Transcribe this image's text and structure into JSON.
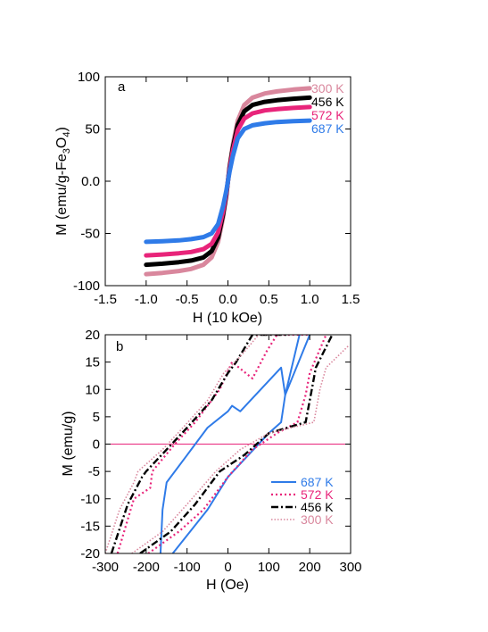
{
  "chart_data": [
    {
      "type": "line",
      "panel_label": "a",
      "xlabel": "H (10 kOe)",
      "ylabel_parts": [
        "M (emu/g-Fe",
        "3",
        "O",
        "4",
        ")"
      ],
      "xlim": [
        -1.5,
        1.5
      ],
      "ylim": [
        -100,
        100
      ],
      "xticks": [
        -1.5,
        -1.0,
        -0.5,
        0.0,
        0.5,
        1.0,
        1.5
      ],
      "xtick_labels": [
        "-1.5",
        "-1.0",
        "-0.5",
        "0.0",
        "0.5",
        "1.0",
        "1.5"
      ],
      "yticks": [
        -100,
        -50,
        0,
        50,
        100
      ],
      "ytick_labels": [
        "-100",
        "-50",
        "0.0",
        "50",
        "100"
      ],
      "legend": "top-right",
      "series": [
        {
          "name": "300 K",
          "color": "#d9879d",
          "ms": 89,
          "x": [
            -1.0,
            -0.8,
            -0.6,
            -0.45,
            -0.3,
            -0.2,
            -0.12,
            -0.06,
            -0.02,
            0.0,
            0.02,
            0.06,
            0.12,
            0.2,
            0.3,
            0.45,
            0.6,
            0.8,
            1.0
          ],
          "y": [
            -89,
            -87.8,
            -86,
            -84,
            -80,
            -73,
            -58,
            -35,
            -14,
            0,
            14,
            35,
            58,
            73,
            80,
            84,
            86,
            87.8,
            89
          ]
        },
        {
          "name": "456 K",
          "color": "#000000",
          "ms": 80,
          "x": [
            -1.0,
            -0.8,
            -0.6,
            -0.45,
            -0.3,
            -0.2,
            -0.12,
            -0.06,
            -0.02,
            0.0,
            0.02,
            0.06,
            0.12,
            0.2,
            0.3,
            0.45,
            0.6,
            0.8,
            1.0
          ],
          "y": [
            -80,
            -79,
            -77.5,
            -76,
            -73,
            -67,
            -54,
            -32,
            -13,
            0,
            13,
            32,
            54,
            67,
            73,
            76,
            77.5,
            79,
            80
          ]
        },
        {
          "name": "572 K",
          "color": "#e8247a",
          "ms": 71,
          "x": [
            -1.0,
            -0.8,
            -0.6,
            -0.45,
            -0.3,
            -0.2,
            -0.12,
            -0.06,
            -0.02,
            0.0,
            0.02,
            0.06,
            0.12,
            0.2,
            0.3,
            0.45,
            0.6,
            0.8,
            1.0
          ],
          "y": [
            -71,
            -70.2,
            -69,
            -67.8,
            -65,
            -60,
            -49,
            -29,
            -11,
            0,
            11,
            29,
            49,
            60,
            65,
            67.8,
            69,
            70.2,
            71
          ]
        },
        {
          "name": "687 K",
          "color": "#2f7be8",
          "ms": 58,
          "x": [
            -1.0,
            -0.8,
            -0.6,
            -0.45,
            -0.3,
            -0.2,
            -0.12,
            -0.06,
            -0.02,
            0.0,
            0.02,
            0.06,
            0.12,
            0.2,
            0.3,
            0.45,
            0.6,
            0.8,
            1.0
          ],
          "y": [
            -58,
            -57.5,
            -56.7,
            -55.5,
            -53.5,
            -50,
            -41,
            -24,
            -9,
            0,
            9,
            24,
            41,
            50,
            53.5,
            55.5,
            56.7,
            57.5,
            58
          ]
        }
      ]
    },
    {
      "type": "line",
      "panel_label": "b",
      "xlabel": "H (Oe)",
      "ylabel": "M (emu/g)",
      "xlim": [
        -300,
        300
      ],
      "ylim": [
        -20,
        20
      ],
      "xticks": [
        -300,
        -200,
        -100,
        0,
        100,
        200,
        300
      ],
      "xtick_labels": [
        "-300",
        "-200",
        "-100",
        "0",
        "100",
        "200",
        "300"
      ],
      "yticks": [
        -20,
        -15,
        -10,
        -5,
        0,
        5,
        10,
        15,
        20
      ],
      "ytick_labels": [
        "-20",
        "-15",
        "-10",
        "-5",
        "0",
        "5",
        "10",
        "15",
        "20"
      ],
      "zero_line_color": "#e8247a",
      "legend": "bottom-right",
      "series": [
        {
          "name": "687 K",
          "color": "#2f7be8",
          "dash": "solid",
          "x": [
            -300,
            -220,
            -160,
            -150,
            -100,
            -50,
            0,
            30,
            10,
            10,
            130,
            140,
            200,
            200,
            130,
            40,
            0,
            -50,
            -135,
            -165,
            -200,
            -300
          ],
          "y": [
            -20,
            -16,
            -12,
            -11,
            -6,
            -1,
            3,
            6,
            6,
            7,
            14,
            20,
            20,
            20,
            4,
            2,
            -6,
            -12,
            -20,
            -20,
            -20,
            -20
          ],
          "upper": {
            "x": [
              -165,
              -160,
              -150,
              -100,
              -50,
              0,
              10,
              30,
              130,
              140,
              175
            ],
            "y": [
              -20,
              -12,
              -7,
              -2,
              3,
              6,
              7,
              6,
              14,
              9,
              20
            ]
          },
          "lower": {
            "x": [
              -135,
              -50,
              0,
              100,
              130,
              140,
              200
            ],
            "y": [
              -20,
              -12,
              -6,
              2,
              4,
              9,
              20
            ]
          }
        },
        {
          "name": "572 K",
          "color": "#e8247a",
          "dash": "dotted",
          "upper": {
            "x": [
              -270,
              -230,
              -190,
              -185,
              -130,
              -80,
              -20,
              10,
              60,
              95,
              120,
              195
            ],
            "y": [
              -20,
              -10,
              -8,
              -5,
              0,
              4,
              10,
              15,
              12,
              17,
              20,
              20
            ]
          },
          "lower": {
            "x": [
              -195,
              -120,
              -60,
              0,
              60,
              120,
              170,
              190,
              200,
              240
            ],
            "y": [
              -20,
              -16,
              -12,
              -6,
              -1,
              2,
              4,
              9,
              13,
              20
            ]
          }
        },
        {
          "name": "456 K",
          "color": "#000000",
          "dash": "dashdot",
          "upper": {
            "x": [
              -285,
              -245,
              -210,
              -200,
              -150,
              -100,
              -40,
              0,
              20,
              60,
              95,
              150
            ],
            "y": [
              -20,
              -11,
              -6,
              -5,
              -1,
              3,
              8,
              13,
              15,
              20,
              20,
              20
            ]
          },
          "lower": {
            "x": [
              -215,
              -140,
              -80,
              -20,
              40,
              100,
              190,
              205,
              215,
              255
            ],
            "y": [
              -20,
              -16,
              -11,
              -5,
              -2,
              2,
              4,
              10,
              14,
              20
            ]
          }
        },
        {
          "name": "300 K",
          "color": "#d9879d",
          "dash": "dotted2",
          "upper": {
            "x": [
              -300,
              -265,
              -230,
              -220,
              -160,
              -110,
              -50,
              -10,
              30,
              75,
              110,
              130
            ],
            "y": [
              -20,
              -12,
              -7,
              -5,
              -1,
              3,
              8,
              13,
              16,
              20,
              20,
              20
            ]
          },
          "lower": {
            "x": [
              -235,
              -160,
              -100,
              -30,
              30,
              100,
              210,
              225,
              240,
              295
            ],
            "y": [
              -20,
              -16,
              -11,
              -5,
              -1,
              2,
              4,
              10,
              14,
              18
            ]
          }
        }
      ]
    }
  ]
}
